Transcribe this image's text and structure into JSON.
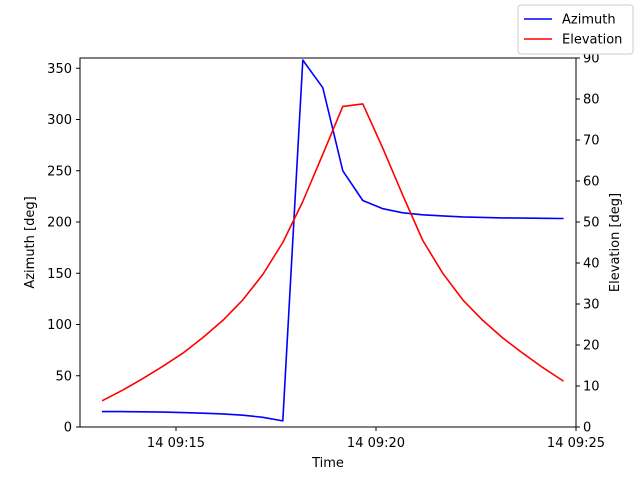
{
  "chart_data": {
    "type": "line",
    "xlabel": "Time",
    "ylabel_left": "Azimuth [deg]",
    "ylabel_right": "Elevation [deg]",
    "x_ticks": [
      "14 09:15",
      "14 09:20",
      "14 09:25"
    ],
    "x_tick_minutes": [
      15,
      20,
      25
    ],
    "xlim_minutes": [
      12.6,
      25.0
    ],
    "ylim_left": [
      0,
      360
    ],
    "ylim_right": [
      0,
      90
    ],
    "y_ticks_left": [
      "0",
      "50",
      "100",
      "150",
      "200",
      "250",
      "300",
      "350"
    ],
    "y_ticks_right": [
      "0",
      "10",
      "20",
      "30",
      "40",
      "50",
      "60",
      "70",
      "80",
      "90"
    ],
    "grid": false,
    "legend_position": "top-right",
    "x_minutes": [
      13.17,
      13.67,
      14.17,
      14.67,
      15.17,
      15.67,
      16.17,
      16.67,
      17.17,
      17.67,
      18.17,
      18.67,
      19.17,
      19.67,
      20.17,
      20.67,
      21.17,
      21.67,
      22.17,
      22.67,
      23.17,
      23.67,
      24.17,
      24.67
    ],
    "series": [
      {
        "name": "Azimuth",
        "axis": "left",
        "color": "#0000ff",
        "values": [
          15,
          15,
          14.8,
          14.5,
          14,
          13.5,
          12.8,
          11.5,
          9.5,
          6,
          358,
          331,
          250,
          221,
          213,
          209,
          207,
          206,
          205,
          204.5,
          204,
          203.8,
          203.6,
          203.4
        ]
      },
      {
        "name": "Elevation",
        "axis": "right",
        "color": "#ff0000",
        "values": [
          6.5,
          9,
          11.8,
          14.8,
          18,
          21.8,
          26,
          31,
          37.2,
          45,
          55,
          66.5,
          78.2,
          78.8,
          68,
          56.5,
          45.5,
          37.5,
          31,
          26,
          21.7,
          18,
          14.5,
          11.3
        ]
      }
    ]
  }
}
